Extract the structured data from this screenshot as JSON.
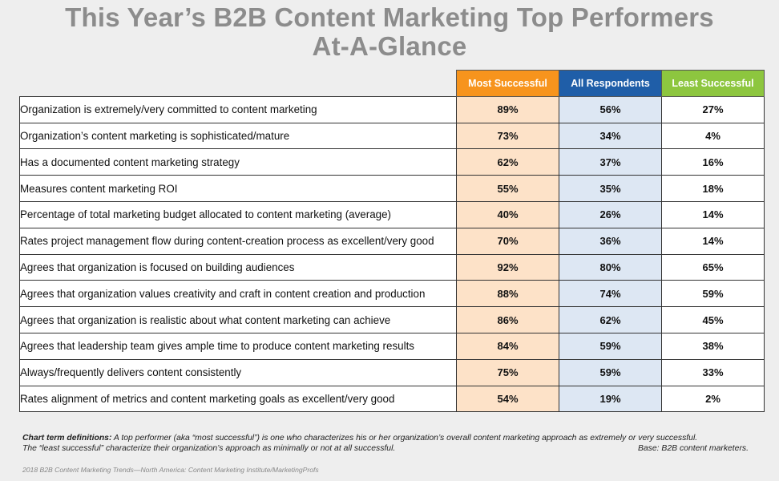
{
  "title_line1": "This Year’s B2B Content Marketing Top Performers",
  "title_line2": "At-A-Glance",
  "chart_data": {
    "type": "table",
    "columns": [
      "Most Successful",
      "All Respondents",
      "Least Successful"
    ],
    "column_colors": [
      "#f7941d",
      "#1f5ea8",
      "#8dc63f"
    ],
    "rows": [
      {
        "label": "Organization is extremely/very committed to content marketing",
        "values": [
          "89%",
          "56%",
          "27%"
        ]
      },
      {
        "label": "Organization’s content marketing is sophisticated/mature",
        "values": [
          "73%",
          "34%",
          "4%"
        ]
      },
      {
        "label": "Has a documented content marketing strategy",
        "values": [
          "62%",
          "37%",
          "16%"
        ]
      },
      {
        "label": "Measures content marketing ROI",
        "values": [
          "55%",
          "35%",
          "18%"
        ]
      },
      {
        "label": "Percentage of total marketing budget allocated to content marketing (average)",
        "values": [
          "40%",
          "26%",
          "14%"
        ]
      },
      {
        "label": "Rates project management flow during content-creation process as excellent/very good",
        "values": [
          "70%",
          "36%",
          "14%"
        ]
      },
      {
        "label": "Agrees that organization is focused on building audiences",
        "values": [
          "92%",
          "80%",
          "65%"
        ]
      },
      {
        "label": "Agrees that organization values creativity and craft in content creation and production",
        "values": [
          "88%",
          "74%",
          "59%"
        ]
      },
      {
        "label": "Agrees that organization is realistic about what content marketing can achieve",
        "values": [
          "86%",
          "62%",
          "45%"
        ]
      },
      {
        "label": "Agrees that leadership team gives ample time to produce content marketing results",
        "values": [
          "84%",
          "59%",
          "38%"
        ]
      },
      {
        "label": "Always/frequently delivers content consistently",
        "values": [
          "75%",
          "59%",
          "33%"
        ]
      },
      {
        "label": "Rates alignment of metrics and content marketing goals as excellent/very good",
        "values": [
          "54%",
          "19%",
          "2%"
        ]
      }
    ]
  },
  "definitions": {
    "heading": "Chart term definitions:",
    "line1": " A top performer (aka “most successful”) is one who characterizes his or her organization’s overall content marketing approach as extremely or very successful.",
    "line2": "The “least successful” characterize their organization’s approach as minimally or not at all successful.",
    "base": "Base: B2B content marketers."
  },
  "source": "2018 B2B Content Marketing Trends—North America: Content Marketing Institute/MarketingProfs"
}
